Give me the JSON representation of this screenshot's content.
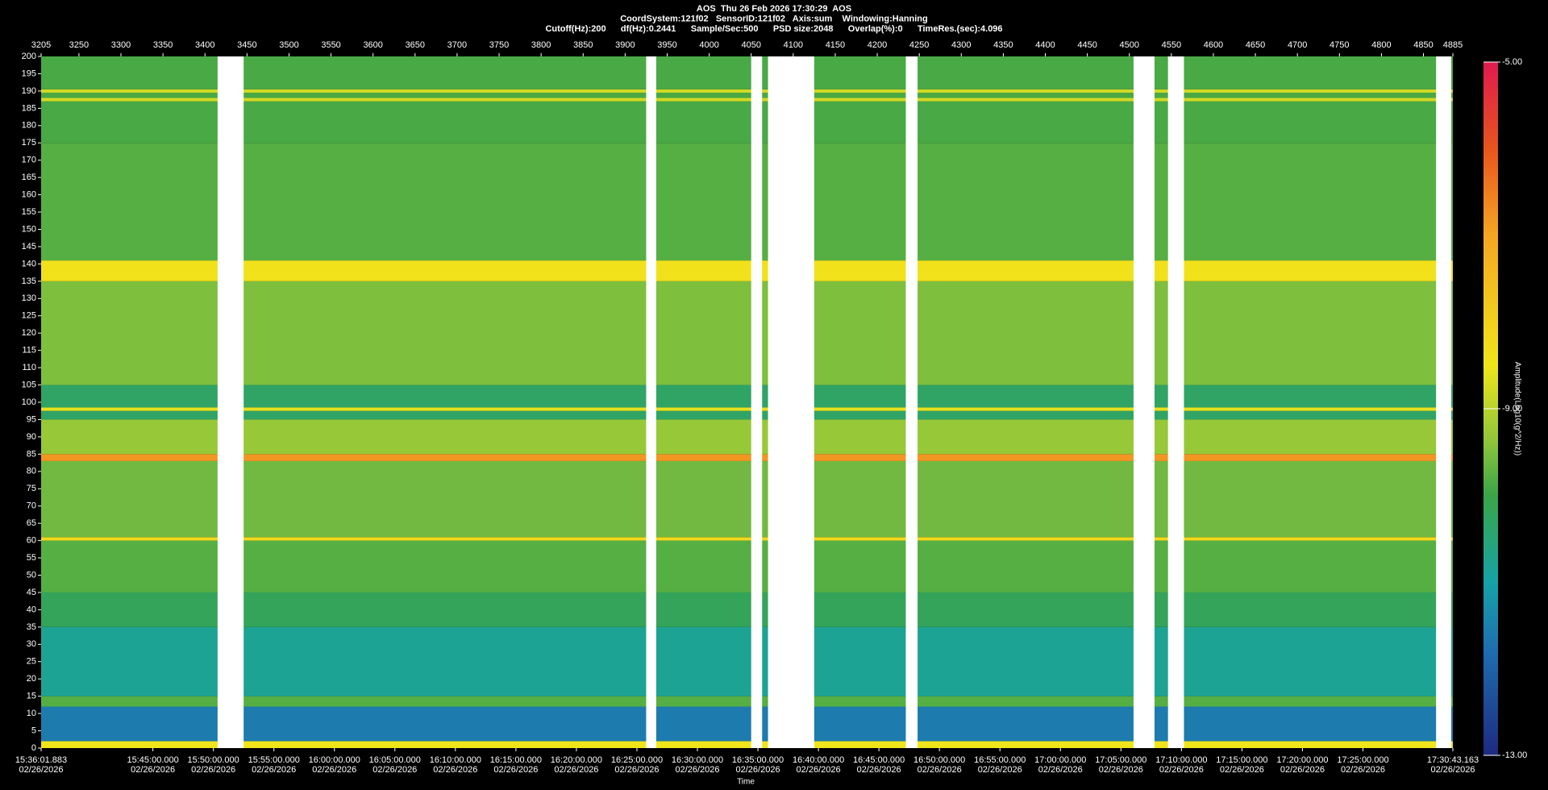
{
  "chart_data": {
    "type": "heatmap",
    "title_lines": [
      "AOS  Thu 26 Feb 2026 17:30:29  AOS",
      "CoordSystem:121f02   SensorID:121f02   Axis:sum    Windowing:Hanning",
      "Cutoff(Hz):200      df(Hz):0.2441      Sample/Sec:500      PSD size:2048      Overlap(%):0      TimeRes.(sec):4.096"
    ],
    "x_label": "Time",
    "colorbar_label": "Amplitude(Log10(g^2/Hz))",
    "xlim": [
      3205,
      4885
    ],
    "xticks": [
      3205,
      3250,
      3300,
      3350,
      3400,
      3450,
      3500,
      3550,
      3600,
      3650,
      3700,
      3750,
      3800,
      3850,
      3900,
      3950,
      4000,
      4050,
      4100,
      4150,
      4200,
      4250,
      4300,
      4350,
      4400,
      4450,
      4500,
      4550,
      4600,
      4650,
      4700,
      4750,
      4800,
      4850,
      4885
    ],
    "ylim": [
      0,
      200
    ],
    "yticks": [
      0,
      5,
      10,
      15,
      20,
      25,
      30,
      35,
      40,
      45,
      50,
      55,
      60,
      65,
      70,
      75,
      80,
      85,
      90,
      95,
      100,
      105,
      110,
      115,
      120,
      125,
      130,
      135,
      140,
      145,
      150,
      155,
      160,
      165,
      170,
      175,
      180,
      185,
      190,
      195,
      200
    ],
    "time_ticks": [
      {
        "value": 3205,
        "label": "15:36:01.883"
      },
      {
        "value": 3338,
        "label": "15:45:00.000"
      },
      {
        "value": 3410,
        "label": "15:50:00.000"
      },
      {
        "value": 3482,
        "label": "15:55:00.000"
      },
      {
        "value": 3554,
        "label": "16:00:00.000"
      },
      {
        "value": 3626,
        "label": "16:05:00.000"
      },
      {
        "value": 3698,
        "label": "16:10:00.000"
      },
      {
        "value": 3770,
        "label": "16:15:00.000"
      },
      {
        "value": 3842,
        "label": "16:20:00.000"
      },
      {
        "value": 3914,
        "label": "16:25:00.000"
      },
      {
        "value": 3986,
        "label": "16:30:00.000"
      },
      {
        "value": 4058,
        "label": "16:35:00.000"
      },
      {
        "value": 4130,
        "label": "16:40:00.000"
      },
      {
        "value": 4202,
        "label": "16:45:00.000"
      },
      {
        "value": 4274,
        "label": "16:50:00.000"
      },
      {
        "value": 4346,
        "label": "16:55:00.000"
      },
      {
        "value": 4418,
        "label": "17:00:00.000"
      },
      {
        "value": 4490,
        "label": "17:05:00.000"
      },
      {
        "value": 4562,
        "label": "17:10:00.000"
      },
      {
        "value": 4634,
        "label": "17:15:00.000"
      },
      {
        "value": 4706,
        "label": "17:20:00.000"
      },
      {
        "value": 4778,
        "label": "17:25:00.000"
      },
      {
        "value": 4885,
        "label": "17:30:43.163"
      }
    ],
    "time_tick_date": "02/26/2026",
    "freq_bins": [
      0,
      2,
      12,
      15,
      35,
      45,
      60,
      61,
      83,
      85,
      95,
      97.5,
      98.5,
      105,
      135,
      141,
      175,
      187,
      188,
      189.5,
      190.5,
      200
    ],
    "values": [
      -8.5,
      -11.6,
      -9.8,
      -10.8,
      -10.2,
      -9.8,
      -8.2,
      -9.6,
      -6.8,
      -9.3,
      -10.3,
      -8.6,
      -10.3,
      -9.5,
      -8.4,
      -9.8,
      -9.9,
      -8.8,
      -9.9,
      -8.8,
      -9.9
    ],
    "gaps": [
      [
        3415,
        3446
      ],
      [
        3925,
        3937
      ],
      [
        4050,
        4063
      ],
      [
        4070,
        4125
      ],
      [
        4234,
        4248
      ],
      [
        4505,
        4530
      ],
      [
        4546,
        4565
      ],
      [
        4865,
        4883
      ]
    ],
    "gap_color": "#ffffff",
    "clim": [
      -13,
      -5
    ],
    "cticks": [
      {
        "value": -5,
        "label": "-5.00"
      },
      {
        "value": -9,
        "label": "-9.00"
      },
      {
        "value": -13,
        "label": "-13.00"
      }
    ],
    "colormap": [
      {
        "value": -13,
        "color": "#1d2a80"
      },
      {
        "value": -11.8,
        "color": "#1f6db0"
      },
      {
        "value": -11,
        "color": "#16a3a6"
      },
      {
        "value": -10,
        "color": "#3aa447"
      },
      {
        "value": -9.4,
        "color": "#8cc43c"
      },
      {
        "value": -8.5,
        "color": "#f0e51a"
      },
      {
        "value": -7,
        "color": "#f5a623"
      },
      {
        "value": -6,
        "color": "#e8541e"
      },
      {
        "value": -5,
        "color": "#e01a4f"
      }
    ]
  }
}
